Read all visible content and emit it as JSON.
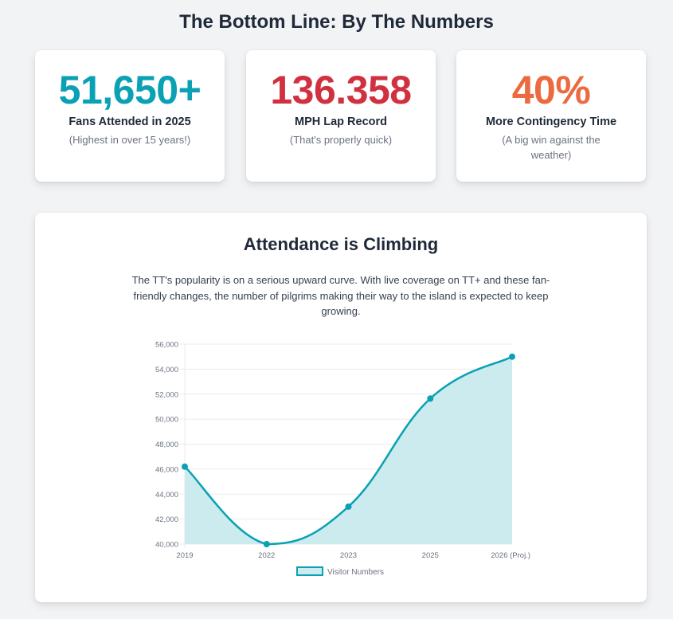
{
  "page": {
    "title": "The Bottom Line: By The Numbers"
  },
  "stats": [
    {
      "value": "51,650+",
      "label": "Fans Attended in 2025",
      "sub": "(Highest in over 15 years!)",
      "color": "#0aa1b4"
    },
    {
      "value": "136.358",
      "label": "MPH Lap Record",
      "sub": "(That's properly quick)",
      "color": "#d1303f"
    },
    {
      "value": "40%",
      "label": "More Contingency Time",
      "sub": "(A big win against the weather)",
      "color": "#ec6a40"
    }
  ],
  "chart_section": {
    "title": "Attendance is Climbing",
    "description": "The TT's popularity is on a serious upward curve. With live coverage on TT+ and these fan-friendly changes, the number of pilgrims making their way to the island is expected to keep growing."
  },
  "chart_data": {
    "type": "area",
    "title": "",
    "xlabel": "",
    "ylabel": "",
    "categories": [
      "2019",
      "2022",
      "2023",
      "2025",
      "2026 (Proj.)"
    ],
    "series": [
      {
        "name": "Visitor Numbers",
        "values": [
          46200,
          40000,
          43000,
          51650,
          55000
        ],
        "color": "#0aa1b4",
        "fill": "#cbebee"
      }
    ],
    "ylim": [
      40000,
      56000
    ],
    "yticks": [
      40000,
      42000,
      44000,
      46000,
      48000,
      50000,
      52000,
      54000,
      56000
    ],
    "ytick_labels": [
      "40,000",
      "42,000",
      "44,000",
      "46,000",
      "48,000",
      "50,000",
      "52,000",
      "54,000",
      "56,000"
    ],
    "grid": true,
    "legend": "bottom",
    "smooth": true
  }
}
